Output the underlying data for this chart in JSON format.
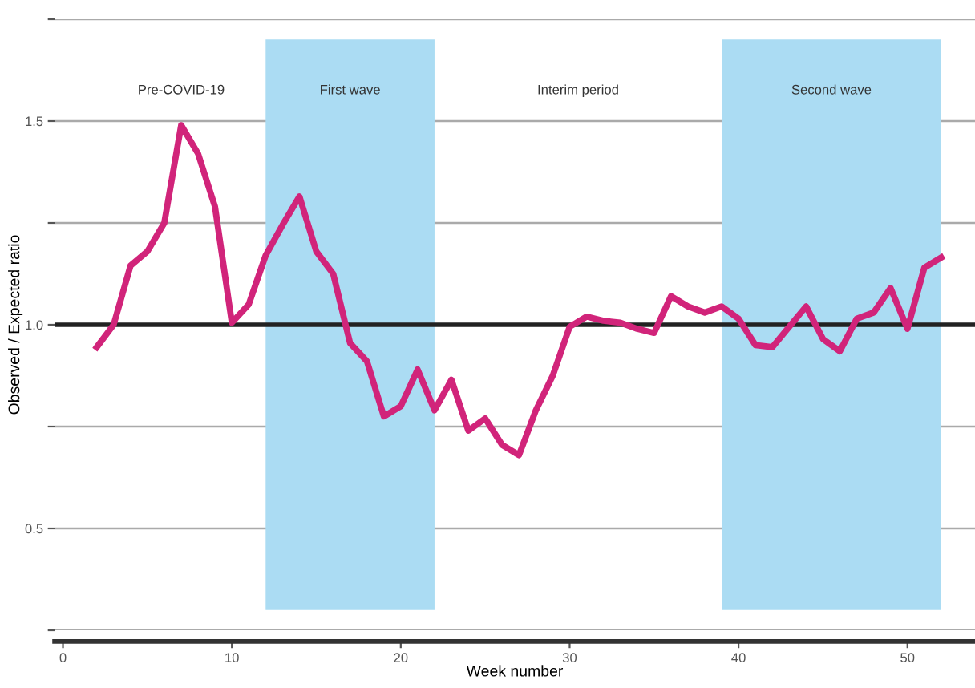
{
  "chart_data": {
    "type": "line",
    "xlabel": "Week number",
    "ylabel": "Observed / Expected ratio",
    "x": [
      2,
      3,
      4,
      5,
      6,
      7,
      8,
      9,
      10,
      11,
      12,
      13,
      14,
      15,
      16,
      17,
      18,
      19,
      20,
      21,
      22,
      23,
      24,
      25,
      26,
      27,
      28,
      29,
      30,
      31,
      32,
      33,
      34,
      35,
      36,
      37,
      38,
      39,
      40,
      41,
      42,
      43,
      44,
      45,
      46,
      47,
      48,
      49,
      50,
      51,
      52
    ],
    "series": [
      {
        "color": "#d1247a",
        "values": [
          0.945,
          1.0,
          1.145,
          1.18,
          1.25,
          1.49,
          1.42,
          1.29,
          1.005,
          1.05,
          1.17,
          1.245,
          1.315,
          1.18,
          1.125,
          0.955,
          0.91,
          0.775,
          0.8,
          0.89,
          0.79,
          0.865,
          0.74,
          0.77,
          0.705,
          0.68,
          0.79,
          0.875,
          0.995,
          1.02,
          1.01,
          1.005,
          0.99,
          0.98,
          1.07,
          1.045,
          1.03,
          1.045,
          1.015,
          0.95,
          0.945,
          0.995,
          1.045,
          0.965,
          0.935,
          1.015,
          1.03,
          1.09,
          0.99,
          1.14,
          1.165
        ]
      }
    ],
    "xlim": [
      -0.5,
      54
    ],
    "xticks": [
      0,
      10,
      20,
      30,
      40,
      50
    ],
    "ylim": [
      0.25,
      1.75
    ],
    "yticks": [
      {
        "value": 0.25,
        "label": null
      },
      0.5,
      {
        "value": 0.75,
        "label": null
      },
      {
        "value": 1.0,
        "label": "1.0"
      },
      {
        "value": 1.25,
        "label": null
      },
      1.5,
      {
        "value": 1.75,
        "label": null
      }
    ],
    "grid": "y",
    "marker": "none",
    "line_style": "solid",
    "ref_lines": [
      {
        "axis": "y",
        "value": 1.0,
        "color": "#222222"
      }
    ],
    "bands": [
      {
        "axis": "x",
        "from": 12,
        "to": 22,
        "color": "#abdcf3",
        "label": "First wave"
      },
      {
        "axis": "x",
        "from": 39,
        "to": 52,
        "color": "#abdcf3",
        "label": "Second wave"
      }
    ],
    "annotations": [
      "Pre-COVID-19",
      "Interim period"
    ]
  }
}
